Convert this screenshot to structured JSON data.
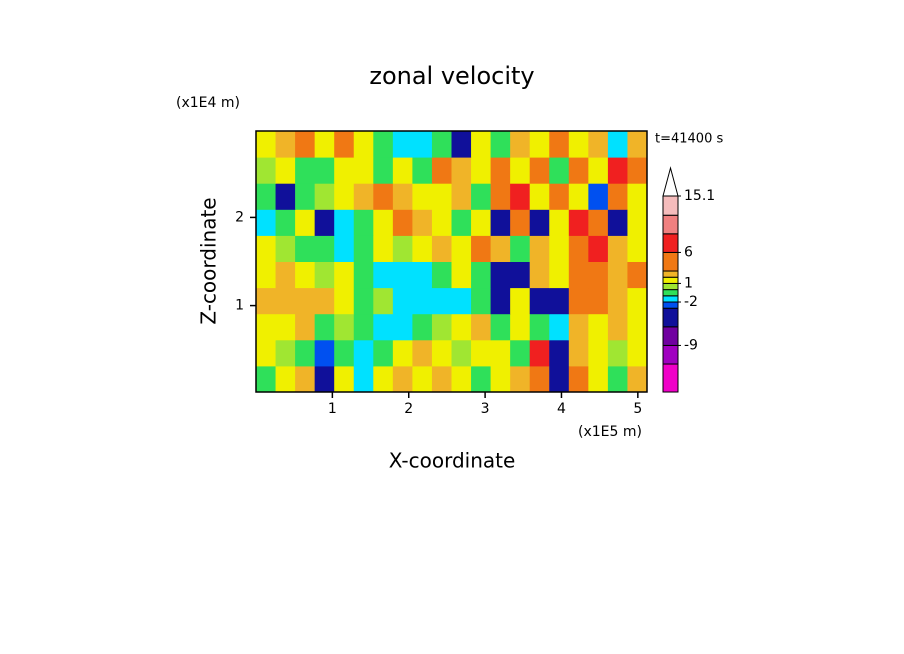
{
  "chart_data": {
    "type": "contour",
    "title": "zonal velocity",
    "x_label": "X-coordinate",
    "y_label": "Z-coordinate",
    "x_unit": "(x1E5 m)",
    "y_unit": "(x1E4 m)",
    "annotation": "t=41400 s",
    "xlim": [
      0,
      5.12
    ],
    "ylim": [
      0.02,
      2.98
    ],
    "xticks": [
      1,
      2,
      3,
      4,
      5
    ],
    "yticks": [
      1,
      2
    ],
    "x": [
      0.128,
      0.384,
      0.64,
      0.896,
      1.152,
      1.408,
      1.664,
      1.92,
      2.176,
      2.432,
      2.688,
      2.944,
      3.2,
      3.456,
      3.712,
      3.968,
      4.224,
      4.48,
      4.736,
      4.992
    ],
    "y": [
      0.168,
      0.464,
      0.76,
      1.056,
      1.352,
      1.648,
      1.944,
      2.24,
      2.536,
      2.832
    ],
    "z": [
      [
        -0.5,
        1.5,
        2.5,
        -4.5,
        1.5,
        -1.5,
        1.5,
        2.5,
        1.5,
        2.5,
        1.5,
        -0.5,
        1.5,
        2.5,
        4.5,
        -4.5,
        4.5,
        1.5,
        -0.5,
        2.5
      ],
      [
        1.5,
        0.5,
        -0.5,
        -2.5,
        -0.5,
        -1.5,
        -0.5,
        1.5,
        2.5,
        1.5,
        0.5,
        1.5,
        1.5,
        -0.5,
        7,
        -4.5,
        2.5,
        1.5,
        0.5,
        1.5
      ],
      [
        1.5,
        1.5,
        2.5,
        -0.5,
        0.5,
        -0.5,
        -1.5,
        -1.5,
        -0.5,
        0.5,
        1.5,
        2.5,
        -0.5,
        1.5,
        -0.5,
        -1.5,
        2.5,
        1.5,
        2.5,
        1.5
      ],
      [
        2.5,
        2.5,
        2.5,
        2.5,
        1.5,
        -0.5,
        0.5,
        -1.5,
        -1.5,
        -1.5,
        -1.5,
        -0.5,
        -4.5,
        1.5,
        -4.5,
        -4.5,
        4.5,
        4.5,
        2.5,
        1.5
      ],
      [
        1.5,
        2.5,
        1.5,
        0.5,
        1.5,
        -0.5,
        -1.5,
        -1.5,
        -1.5,
        -0.5,
        1.5,
        -0.5,
        -4.5,
        -4.5,
        2.5,
        1.5,
        4.5,
        4.5,
        2.5,
        4.5
      ],
      [
        1.5,
        0.5,
        -0.5,
        -0.5,
        -1.5,
        -0.5,
        1.5,
        0.5,
        1.5,
        2.5,
        1.5,
        4.5,
        2.5,
        -0.5,
        2.5,
        1.5,
        4.5,
        7,
        2.5,
        1.5
      ],
      [
        -1.5,
        -0.5,
        1.5,
        -4.5,
        -1.5,
        -0.5,
        1.5,
        4.5,
        2.5,
        1.5,
        -0.5,
        1.5,
        -4.5,
        4.5,
        -4.5,
        1.5,
        7,
        4.5,
        -4.5,
        1.5
      ],
      [
        -0.5,
        -4.5,
        -0.5,
        0.5,
        1.5,
        2.5,
        4.5,
        2.5,
        1.5,
        1.5,
        2.5,
        -0.5,
        4.5,
        7,
        1.5,
        4.5,
        1.5,
        -2.5,
        4.5,
        1.5
      ],
      [
        0.5,
        1.5,
        -0.5,
        -0.5,
        1.5,
        1.5,
        -0.5,
        1.5,
        -0.5,
        4.5,
        2.5,
        1.5,
        4.5,
        1.5,
        4.5,
        -0.5,
        4.5,
        1.5,
        7,
        4.5
      ],
      [
        1.5,
        2.5,
        4.5,
        1.5,
        4.5,
        1.5,
        -0.5,
        -1.5,
        -1.5,
        -0.5,
        -4.5,
        1.5,
        -0.5,
        2.5,
        1.5,
        4.5,
        1.5,
        2.5,
        -1.5,
        2.5
      ]
    ],
    "levels": [
      -12,
      -9,
      -6,
      -3,
      -2,
      -1,
      0,
      1,
      2,
      3,
      6,
      9,
      12,
      15.1
    ],
    "colors": [
      "#f000c8",
      "#a000c0",
      "#7000a0",
      "#10109a",
      "#0050f0",
      "#00e1ff",
      "#2fe05a",
      "#a0e632",
      "#f0f000",
      "#f0b428",
      "#f07814",
      "#f02020",
      "#f08080",
      "#f5bcbc",
      "#ffffff"
    ],
    "colorbar_ticks": [
      15.1,
      6,
      1,
      -2,
      -9
    ]
  }
}
